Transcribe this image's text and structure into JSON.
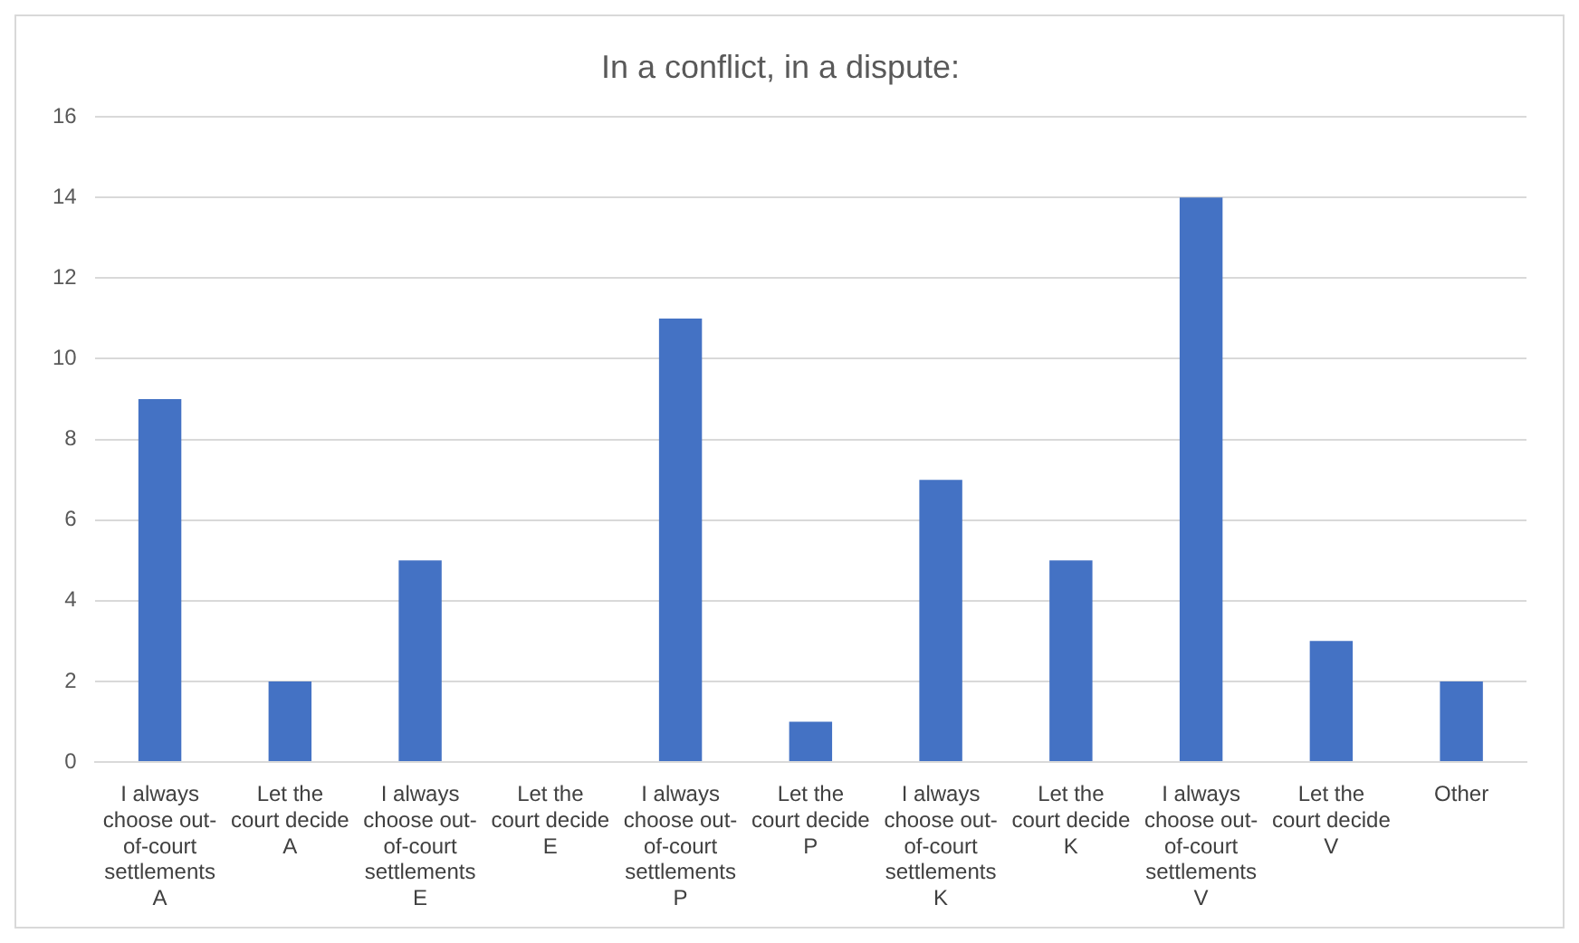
{
  "chart_data": {
    "type": "bar",
    "title": "In a conflict, in a dispute:",
    "categories": [
      "I always choose out-of-court settlements A",
      "Let the court decide A",
      "I always choose out-of-court settlements E",
      "Let the court decide E",
      "I always choose out-of-court settlements P",
      "Let the court decide P",
      "I always choose out-of-court settlements K",
      "Let the court decide K",
      "I always choose out-of-court settlements V",
      "Let the court decide V",
      "Other"
    ],
    "values": [
      9,
      2,
      5,
      0,
      11,
      1,
      7,
      5,
      14,
      3,
      2
    ],
    "color": "#4472c4",
    "ylim": [
      0,
      16
    ],
    "yticks": [
      0,
      2,
      4,
      6,
      8,
      10,
      12,
      14,
      16
    ],
    "grid": "y",
    "legend": false
  }
}
